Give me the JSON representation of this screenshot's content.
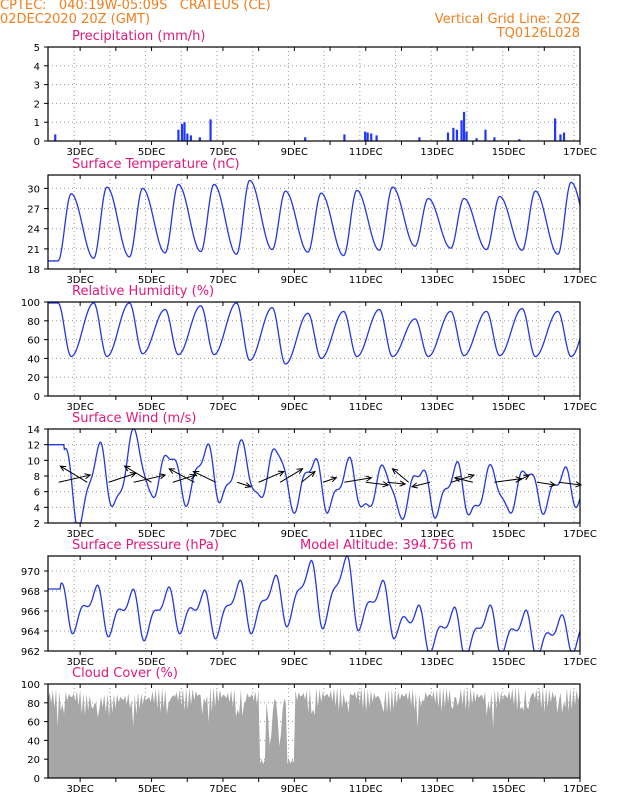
{
  "header": {
    "line1": "CPTEC:   040:19W-05:09S   CRATEUS (CE)",
    "line2": "02DEC2020 20Z (GMT)",
    "grid_note": "Vertical Grid Line: 20Z",
    "code": "TQ0126L028"
  },
  "colors": {
    "header": "#f07f1e",
    "title": "#e0197d",
    "line": "#2438e0",
    "bar_precip": "#1f36ff",
    "cloud": "#a6a6a6",
    "wind_arrow": "#000000"
  },
  "x_ticks": [
    "3DEC",
    "5DEC",
    "7DEC",
    "9DEC",
    "11DEC",
    "13DEC",
    "15DEC",
    "17DEC"
  ],
  "chart_data": [
    {
      "id": "precip",
      "type": "bar",
      "title": "Precipitation (mm/h)",
      "ylim": [
        0,
        5
      ],
      "yticks": [
        "0",
        "1",
        "2",
        "3",
        "4",
        "5"
      ],
      "time_range_days": [
        2.1,
        17.0
      ],
      "events": [
        {
          "day": 2.3,
          "value": 0.35
        },
        {
          "day": 5.75,
          "value": 0.6
        },
        {
          "day": 5.85,
          "value": 0.9
        },
        {
          "day": 5.92,
          "value": 1.0
        },
        {
          "day": 6.0,
          "value": 0.4
        },
        {
          "day": 6.1,
          "value": 0.3
        },
        {
          "day": 6.35,
          "value": 0.2
        },
        {
          "day": 6.65,
          "value": 1.15
        },
        {
          "day": 9.3,
          "value": 0.2
        },
        {
          "day": 10.4,
          "value": 0.35
        },
        {
          "day": 10.98,
          "value": 0.5
        },
        {
          "day": 11.05,
          "value": 0.45
        },
        {
          "day": 11.15,
          "value": 0.4
        },
        {
          "day": 11.3,
          "value": 0.3
        },
        {
          "day": 12.5,
          "value": 0.2
        },
        {
          "day": 13.3,
          "value": 0.45
        },
        {
          "day": 13.45,
          "value": 0.7
        },
        {
          "day": 13.55,
          "value": 0.6
        },
        {
          "day": 13.68,
          "value": 1.1
        },
        {
          "day": 13.75,
          "value": 1.55
        },
        {
          "day": 13.82,
          "value": 0.5
        },
        {
          "day": 14.1,
          "value": 0.15
        },
        {
          "day": 14.35,
          "value": 0.6
        },
        {
          "day": 14.6,
          "value": 0.2
        },
        {
          "day": 15.3,
          "value": 0.1
        },
        {
          "day": 16.3,
          "value": 1.2
        },
        {
          "day": 16.45,
          "value": 0.35
        },
        {
          "day": 16.55,
          "value": 0.45
        }
      ]
    },
    {
      "id": "temp",
      "type": "line",
      "title": "Surface Temperature (nC)",
      "ylim": [
        18,
        32
      ],
      "yticks": [
        "18",
        "21",
        "24",
        "27",
        "30"
      ],
      "daily_max": [
        29.2,
        30.2,
        30.0,
        30.6,
        30.6,
        31.2,
        29.6,
        29.3,
        29.7,
        30.2,
        28.5,
        28.5,
        28.8,
        29.6,
        30.9,
        31.2,
        29.3
      ],
      "daily_min": [
        19.2,
        19.6,
        19.8,
        20.4,
        20.6,
        20.2,
        20.9,
        20.5,
        20.0,
        20.8,
        21.4,
        21.1,
        20.9,
        20.8,
        20.2,
        20.9,
        20.6
      ]
    },
    {
      "id": "rh",
      "type": "line",
      "title": "Relative Humidity (%)",
      "ylim": [
        0,
        100
      ],
      "yticks": [
        "0",
        "20",
        "40",
        "60",
        "80",
        "100"
      ],
      "daily_max": [
        99,
        99,
        99,
        92,
        96,
        99,
        94,
        88,
        90,
        92,
        82,
        90,
        90,
        93,
        90,
        98,
        98
      ],
      "daily_min": [
        42,
        42,
        45,
        44,
        44,
        38,
        34,
        40,
        42,
        42,
        42,
        43,
        43,
        42,
        42,
        36,
        38
      ]
    },
    {
      "id": "wind",
      "type": "line",
      "title": "Surface Wind (m/s)",
      "ylim": [
        2,
        14
      ],
      "yticks": [
        "2",
        "4",
        "6",
        "8",
        "10",
        "12",
        "14"
      ],
      "daily_max": [
        12.0,
        11.5,
        13.5,
        11.0,
        11.5,
        11.8,
        11.5,
        10.0,
        9.5,
        9.0,
        9.0,
        9.0,
        8.8,
        9.0,
        8.5,
        8.0,
        8.0
      ],
      "daily_min": [
        2.0,
        4.0,
        5.5,
        5.0,
        5.0,
        5.0,
        4.0,
        4.0,
        3.5,
        3.0,
        3.5,
        3.0,
        3.5,
        4.0,
        4.5,
        4.5,
        4.5
      ],
      "arrows": [
        {
          "day": 2.4,
          "u": 3.5,
          "v": 0.8
        },
        {
          "day": 3.2,
          "u": -3.0,
          "v": 1.8
        },
        {
          "day": 3.8,
          "u": 3.0,
          "v": 1.0
        },
        {
          "day": 4.5,
          "u": 3.5,
          "v": 0.8
        },
        {
          "day": 5.0,
          "u": -3.0,
          "v": 1.8
        },
        {
          "day": 5.6,
          "u": 2.5,
          "v": 0.8
        },
        {
          "day": 6.2,
          "u": -2.8,
          "v": 1.5
        },
        {
          "day": 6.8,
          "u": -2.5,
          "v": 1.2
        },
        {
          "day": 7.4,
          "u": 1.5,
          "v": -0.5
        },
        {
          "day": 8.0,
          "u": 2.8,
          "v": 1.2
        },
        {
          "day": 8.6,
          "u": 2.5,
          "v": 1.5
        },
        {
          "day": 9.2,
          "u": 1.5,
          "v": 1.2
        },
        {
          "day": 9.8,
          "u": 1.5,
          "v": 0.5
        },
        {
          "day": 10.4,
          "u": 3.0,
          "v": 0.5
        },
        {
          "day": 11.0,
          "u": 2.5,
          "v": -0.3
        },
        {
          "day": 11.6,
          "u": 2.0,
          "v": -0.2
        },
        {
          "day": 12.2,
          "u": -1.8,
          "v": 1.5
        },
        {
          "day": 12.8,
          "u": -2.0,
          "v": -0.5
        },
        {
          "day": 13.4,
          "u": 2.5,
          "v": 0.8
        },
        {
          "day": 14.0,
          "u": -2.0,
          "v": 0.5
        },
        {
          "day": 14.6,
          "u": 3.0,
          "v": 0.4
        },
        {
          "day": 15.2,
          "u": 1.5,
          "v": 0.8
        },
        {
          "day": 15.8,
          "u": 2.0,
          "v": -0.3
        },
        {
          "day": 16.4,
          "u": 2.5,
          "v": -0.3
        }
      ]
    },
    {
      "id": "pres",
      "type": "line",
      "title": "Surface Pressure (hPa)",
      "annotation": "Model Altitude: 394.756 m",
      "ylim": [
        962,
        971.5
      ],
      "yticks": [
        "962",
        "964",
        "966",
        "968",
        "970"
      ],
      "daily_max": [
        968.2,
        968.0,
        967.6,
        967.8,
        967.5,
        968.5,
        969.0,
        970.5,
        971.0,
        968.5,
        966.0,
        965.8,
        966.0,
        965.5,
        965.0,
        966.0,
        965.0
      ],
      "daily_min": [
        964.5,
        964.2,
        963.8,
        964.5,
        964.0,
        964.5,
        965.2,
        965.0,
        964.8,
        964.0,
        962.5,
        962.0,
        962.3,
        962.0,
        962.5,
        962.2,
        962.0
      ]
    },
    {
      "id": "cloud",
      "type": "area",
      "title": "Cloud Cover (%)",
      "ylim": [
        0,
        100
      ],
      "yticks": [
        "0",
        "20",
        "40",
        "60",
        "80",
        "100"
      ],
      "daily_level": [
        95,
        90,
        92,
        96,
        97,
        95,
        20,
        96,
        97,
        95,
        96,
        97,
        95,
        97,
        96,
        95,
        94
      ]
    }
  ]
}
